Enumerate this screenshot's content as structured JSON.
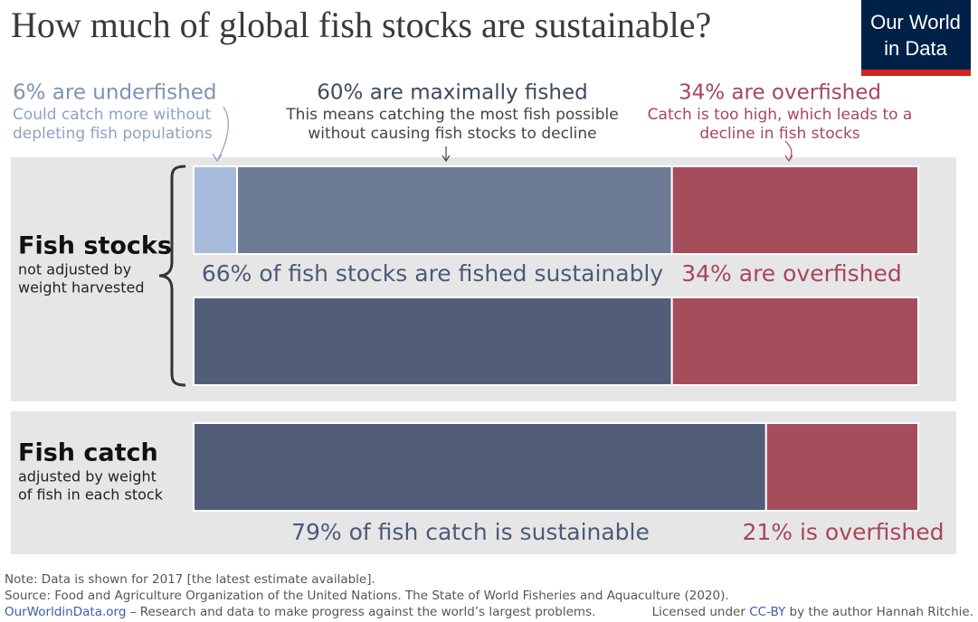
{
  "chart_data": {
    "type": "stacked-bar",
    "title": "How much of global fish stocks are sustainable?",
    "logo": [
      "Our World",
      "in Data"
    ],
    "annotations": [
      {
        "title": "6% are underfished",
        "text": [
          "Could catch more without",
          "depleting fish populations"
        ],
        "color": "#7f93b3",
        "text_color": "#8ea3c0"
      },
      {
        "title": "60% are maximally fished",
        "text": [
          "This means catching the most fish possible",
          "without causing fish stocks to decline"
        ],
        "color": "#3f4a5e",
        "text_color": "#444444"
      },
      {
        "title": "34% are overfished",
        "text": [
          "Catch is too high, which leads to a",
          "decline in fish stocks"
        ],
        "color": "#a8465a",
        "text_color": "#a8465a"
      }
    ],
    "groups": [
      {
        "label": "Fish stocks",
        "sublabel": [
          "not adjusted by",
          "weight harvested"
        ]
      },
      {
        "label": "Fish catch",
        "sublabel": [
          "adjusted by weight",
          "of fish in each stock"
        ]
      }
    ],
    "bars": [
      {
        "segments": [
          {
            "value": 6,
            "color": "#a6bbdc"
          },
          {
            "value": 60,
            "color": "#6d7a93"
          },
          {
            "value": 34,
            "color": "#a64d5c"
          }
        ],
        "labels": [
          {
            "text": "66% of fish stocks are fished sustainably",
            "color": "#4c5a78"
          },
          {
            "text": "34% are overfished",
            "color": "#a8465a"
          }
        ]
      },
      {
        "segments": [
          {
            "value": 66,
            "color": "#525e79"
          },
          {
            "value": 34,
            "color": "#a64d5c"
          }
        ],
        "labels": []
      },
      {
        "segments": [
          {
            "value": 79,
            "color": "#525e79"
          },
          {
            "value": 21,
            "color": "#a64d5c"
          }
        ],
        "labels": [
          {
            "text": "79% of fish catch is sustainable",
            "color": "#4c5a78"
          },
          {
            "text": "21% is overfished",
            "color": "#a8465a"
          }
        ]
      }
    ]
  },
  "footer": {
    "note": "Note: Data is shown for 2017 [the latest estimate available].",
    "source": "Source: Food and Agriculture Organization of the United Nations. The State of World Fisheries and Aquaculture (2020).",
    "site": "OurWorldinData.org",
    "tagline": " – Research and data to make progress against the world’s largest problems.",
    "license_prefix": "Licensed under ",
    "license_link": "CC-BY",
    "license_suffix": " by the author Hannah Ritchie."
  }
}
